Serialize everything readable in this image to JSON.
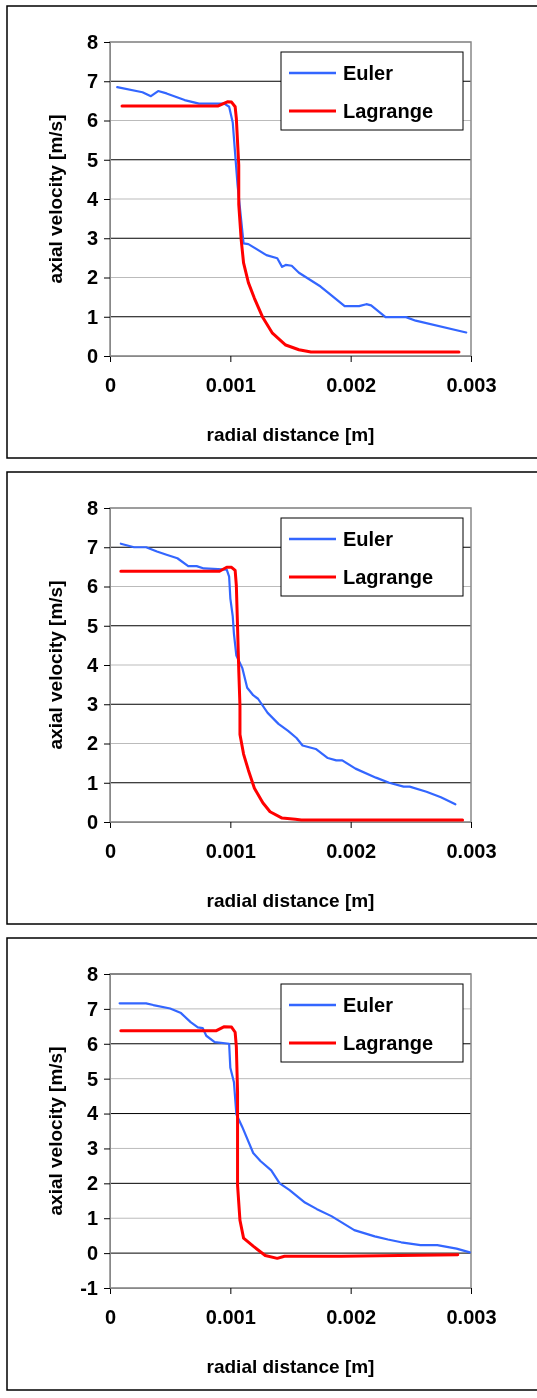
{
  "chart_data": [
    {
      "type": "line",
      "xlabel": "radial distance [m]",
      "ylabel": "axial velocity [m/s]",
      "xlim": [
        0,
        0.003
      ],
      "xticks": [
        0,
        0.001,
        0.002,
        0.003
      ],
      "ylim": [
        0,
        8
      ],
      "yticks": [
        0,
        1,
        2,
        3,
        4,
        5,
        6,
        7,
        8
      ],
      "grid": "y",
      "legend": "top right",
      "line_style": "solid",
      "marker": "none",
      "series": [
        {
          "name": "Euler",
          "color": "#3366ff",
          "x": [
            6e-05,
            0.00027,
            0.00034,
            0.0004,
            0.00047,
            0.00062,
            0.00074,
            0.00095,
            0.00099,
            0.00102,
            0.00104,
            0.00106,
            0.00111,
            0.00115,
            0.0013,
            0.00139,
            0.00143,
            0.00146,
            0.00151,
            0.00157,
            0.00175,
            0.00183,
            0.00195,
            0.00207,
            0.00213,
            0.00217,
            0.00229,
            0.00246,
            0.00254,
            0.00296
          ],
          "values": [
            6.85,
            6.72,
            6.62,
            6.75,
            6.69,
            6.52,
            6.43,
            6.43,
            6.35,
            5.95,
            5.15,
            4.36,
            2.87,
            2.85,
            2.57,
            2.49,
            2.27,
            2.32,
            2.3,
            2.12,
            1.77,
            1.57,
            1.27,
            1.27,
            1.32,
            1.29,
            0.99,
            0.99,
            0.9,
            0.6
          ]
        },
        {
          "name": "Lagrange",
          "color": "#ff0000",
          "x": [
            0.0001,
            0.0009,
            0.00098,
            0.00101,
            0.00104,
            0.00105,
            0.00107,
            0.00107,
            0.00109,
            0.00111,
            0.00115,
            0.0012,
            0.00127,
            0.00135,
            0.00146,
            0.00157,
            0.00167,
            0.0029
          ],
          "values": [
            6.37,
            6.37,
            6.48,
            6.47,
            6.35,
            6.05,
            4.86,
            3.86,
            2.97,
            2.37,
            1.87,
            1.47,
            0.98,
            0.58,
            0.28,
            0.16,
            0.1,
            0.1
          ]
        }
      ]
    },
    {
      "type": "line",
      "xlabel": "radial distance [m]",
      "ylabel": "axial velocity [m/s]",
      "xlim": [
        0,
        0.003
      ],
      "xticks": [
        0,
        0.001,
        0.002,
        0.003
      ],
      "ylim": [
        0,
        8
      ],
      "yticks": [
        0,
        1,
        2,
        3,
        4,
        5,
        6,
        7,
        8
      ],
      "grid": "y",
      "legend": "top right",
      "line_style": "solid",
      "marker": "none",
      "series": [
        {
          "name": "Euler",
          "color": "#3366ff",
          "x": [
            9e-05,
            0.0002,
            0.0003,
            0.00039,
            0.00047,
            0.00056,
            0.00065,
            0.00072,
            0.00078,
            0.00086,
            0.00097,
            0.00099,
            0.001,
            0.00102,
            0.00103,
            0.00105,
            0.0011,
            0.00114,
            0.00119,
            0.00123,
            0.00131,
            0.0014,
            0.00148,
            0.00155,
            0.0016,
            0.00171,
            0.00181,
            0.00188,
            0.00193,
            0.00204,
            0.00221,
            0.00232,
            0.00244,
            0.00249,
            0.00263,
            0.00275,
            0.00287
          ],
          "values": [
            7.09,
            7.0,
            7.0,
            6.89,
            6.81,
            6.72,
            6.52,
            6.52,
            6.46,
            6.45,
            6.43,
            6.25,
            5.7,
            5.24,
            4.79,
            4.24,
            3.92,
            3.42,
            3.23,
            3.14,
            2.78,
            2.5,
            2.32,
            2.14,
            1.95,
            1.86,
            1.63,
            1.57,
            1.57,
            1.36,
            1.13,
            1.0,
            0.9,
            0.9,
            0.77,
            0.63,
            0.45
          ]
        },
        {
          "name": "Lagrange",
          "color": "#ff0000",
          "x": [
            9e-05,
            0.00091,
            0.00097,
            0.00101,
            0.00104,
            0.00105,
            0.00106,
            0.00107,
            0.00108,
            0.00108,
            0.00111,
            0.00115,
            0.0012,
            0.00127,
            0.00133,
            0.00143,
            0.00154,
            0.00159,
            0.00293
          ],
          "values": [
            6.39,
            6.39,
            6.49,
            6.49,
            6.41,
            6.02,
            4.97,
            3.87,
            2.96,
            2.23,
            1.73,
            1.32,
            0.86,
            0.49,
            0.26,
            0.1,
            0.07,
            0.05,
            0.05
          ]
        }
      ]
    },
    {
      "type": "line",
      "xlabel": "radial distance [m]",
      "ylabel": "axial velocity [m/s]",
      "xlim": [
        0,
        0.003
      ],
      "xticks": [
        0,
        0.001,
        0.002,
        0.003
      ],
      "ylim": [
        -1,
        8
      ],
      "yticks": [
        -1,
        0,
        1,
        2,
        3,
        4,
        5,
        6,
        7,
        8
      ],
      "grid": "y",
      "legend": "top right",
      "line_style": "solid",
      "marker": "none",
      "series": [
        {
          "name": "Euler",
          "color": "#3366ff",
          "x": [
            8e-05,
            0.0003,
            0.00036,
            0.0005,
            0.00059,
            0.00067,
            0.00073,
            0.00077,
            0.0008,
            0.00087,
            0.00099,
            0.001,
            0.00103,
            0.00105,
            0.0011,
            0.00119,
            0.00125,
            0.00134,
            0.00141,
            0.00149,
            0.00162,
            0.00172,
            0.00184,
            0.00203,
            0.0022,
            0.00231,
            0.00242,
            0.00258,
            0.00272,
            0.00288,
            0.00299
          ],
          "values": [
            7.16,
            7.16,
            7.11,
            7.01,
            6.88,
            6.62,
            6.47,
            6.45,
            6.23,
            6.05,
            6.0,
            5.31,
            4.9,
            3.98,
            3.61,
            2.87,
            2.64,
            2.37,
            2.0,
            1.81,
            1.45,
            1.26,
            1.06,
            0.66,
            0.48,
            0.39,
            0.31,
            0.23,
            0.23,
            0.13,
            0.02
          ]
        },
        {
          "name": "Lagrange",
          "color": "#ff0000",
          "x": [
            9e-05,
            0.00088,
            0.00095,
            0.00101,
            0.00104,
            0.00105,
            0.00106,
            0.00106,
            0.00106,
            0.00108,
            0.00111,
            0.00119,
            0.00129,
            0.00139,
            0.00145,
            0.00192,
            0.00289
          ],
          "values": [
            6.37,
            6.37,
            6.49,
            6.48,
            6.33,
            5.91,
            4.62,
            3.24,
            1.95,
            0.94,
            0.43,
            0.2,
            -0.07,
            -0.15,
            -0.09,
            -0.09,
            -0.05
          ]
        }
      ]
    }
  ]
}
